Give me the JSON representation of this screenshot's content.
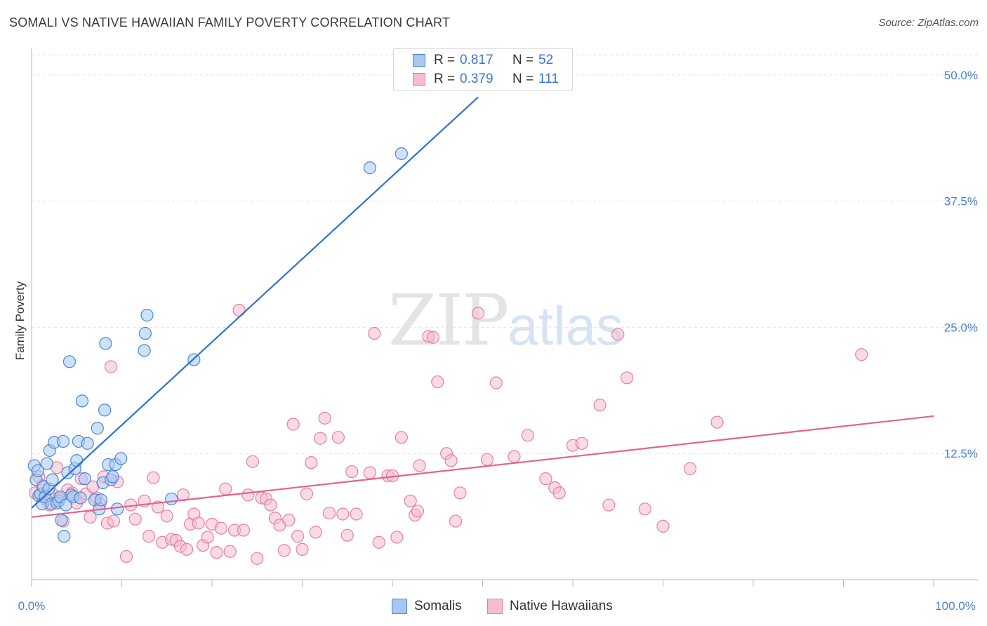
{
  "title": "SOMALI VS NATIVE HAWAIIAN FAMILY POVERTY CORRELATION CHART",
  "source": "Source: ZipAtlas.com",
  "watermark": {
    "zip": "ZIP",
    "atlas": "atlas"
  },
  "colors": {
    "somali_fill": "#a8c8f0",
    "somali_stroke": "#4a86d8",
    "somali_line": "#2f72d0",
    "hawaiian_fill": "#f6bcd0",
    "hawaiian_stroke": "#e77fa4",
    "hawaiian_line": "#e0648f",
    "accent_text": "#3b76d6"
  },
  "legend_top": {
    "rows": [
      {
        "r_label": "R =",
        "r_value": "0.817",
        "n_label": "N =",
        "n_value": "52"
      },
      {
        "r_label": "R =",
        "r_value": "0.379",
        "n_label": "N =",
        "n_value": "111"
      }
    ]
  },
  "legend_bottom": {
    "somali": "Somalis",
    "hawaiian": "Native Hawaiians"
  },
  "chart_data": {
    "type": "scatter",
    "title": "SOMALI VS NATIVE HAWAIIAN FAMILY POVERTY CORRELATION CHART",
    "xlabel": "",
    "ylabel": "Family Poverty",
    "xlim": [
      0,
      100
    ],
    "ylim": [
      0,
      52
    ],
    "x_tick_labels": [
      "0.0%",
      "100.0%"
    ],
    "y_ticks": [
      12.5,
      25.0,
      37.5,
      50.0
    ],
    "y_tick_labels": [
      "12.5%",
      "25.0%",
      "37.5%",
      "50.0%"
    ],
    "series": [
      {
        "name": "Somalis",
        "r": 0.817,
        "n": 52,
        "trend": {
          "x0": 0,
          "y0": 7.1,
          "x1": 49.5,
          "y1": 47.8
        },
        "points": [
          [
            0.3,
            11.3
          ],
          [
            0.5,
            9.9
          ],
          [
            0.7,
            10.8
          ],
          [
            0.8,
            8.3
          ],
          [
            1.0,
            8.5
          ],
          [
            1.2,
            7.5
          ],
          [
            1.3,
            9.2
          ],
          [
            1.5,
            8.2
          ],
          [
            1.7,
            11.5
          ],
          [
            1.9,
            9.0
          ],
          [
            2.0,
            12.8
          ],
          [
            2.2,
            7.5
          ],
          [
            2.3,
            9.9
          ],
          [
            2.5,
            13.6
          ],
          [
            2.8,
            7.6
          ],
          [
            3.0,
            7.8
          ],
          [
            3.2,
            8.2
          ],
          [
            3.3,
            5.9
          ],
          [
            3.5,
            13.7
          ],
          [
            3.6,
            4.3
          ],
          [
            3.8,
            7.4
          ],
          [
            4.0,
            10.6
          ],
          [
            4.2,
            21.6
          ],
          [
            4.4,
            8.4
          ],
          [
            4.6,
            8.2
          ],
          [
            4.8,
            11.0
          ],
          [
            5.0,
            11.8
          ],
          [
            5.2,
            13.7
          ],
          [
            5.4,
            8.1
          ],
          [
            5.6,
            17.7
          ],
          [
            5.9,
            10.0
          ],
          [
            6.2,
            13.5
          ],
          [
            7.0,
            7.9
          ],
          [
            7.3,
            15.0
          ],
          [
            7.5,
            7.0
          ],
          [
            7.7,
            7.9
          ],
          [
            7.9,
            9.6
          ],
          [
            8.1,
            16.8
          ],
          [
            8.2,
            23.4
          ],
          [
            8.5,
            11.4
          ],
          [
            8.8,
            9.9
          ],
          [
            9.0,
            10.2
          ],
          [
            9.3,
            11.4
          ],
          [
            9.5,
            7.0
          ],
          [
            9.9,
            12.0
          ],
          [
            12.5,
            22.7
          ],
          [
            12.6,
            24.4
          ],
          [
            12.8,
            26.2
          ],
          [
            15.5,
            8.0
          ],
          [
            18.0,
            21.8
          ],
          [
            37.5,
            40.8
          ],
          [
            41.0,
            42.2
          ]
        ]
      },
      {
        "name": "Native Hawaiians",
        "r": 0.379,
        "n": 111,
        "trend": {
          "x0": 0,
          "y0": 6.2,
          "x1": 100,
          "y1": 16.2
        },
        "points": [
          [
            0.4,
            8.6
          ],
          [
            0.8,
            10.2
          ],
          [
            1.2,
            9.3
          ],
          [
            1.6,
            7.9
          ],
          [
            2.0,
            7.4
          ],
          [
            2.3,
            8.5
          ],
          [
            2.8,
            11.1
          ],
          [
            3.0,
            8.1
          ],
          [
            3.5,
            5.8
          ],
          [
            4.0,
            8.9
          ],
          [
            4.5,
            8.6
          ],
          [
            5.0,
            7.6
          ],
          [
            5.5,
            10.0
          ],
          [
            6.0,
            8.5
          ],
          [
            6.5,
            6.2
          ],
          [
            6.8,
            9.2
          ],
          [
            7.2,
            8.1
          ],
          [
            7.6,
            7.5
          ],
          [
            8.0,
            10.2
          ],
          [
            8.4,
            5.6
          ],
          [
            8.8,
            21.1
          ],
          [
            9.1,
            5.8
          ],
          [
            9.5,
            9.7
          ],
          [
            10.5,
            2.3
          ],
          [
            11.0,
            7.4
          ],
          [
            11.5,
            6.0
          ],
          [
            12.5,
            7.8
          ],
          [
            13.0,
            4.3
          ],
          [
            13.5,
            10.1
          ],
          [
            14.0,
            7.2
          ],
          [
            14.5,
            3.7
          ],
          [
            15.0,
            6.3
          ],
          [
            15.5,
            4.0
          ],
          [
            16.0,
            3.9
          ],
          [
            16.5,
            3.3
          ],
          [
            16.8,
            8.4
          ],
          [
            17.2,
            3.0
          ],
          [
            17.6,
            5.5
          ],
          [
            18.0,
            6.5
          ],
          [
            18.5,
            5.6
          ],
          [
            19.0,
            3.4
          ],
          [
            19.5,
            4.2
          ],
          [
            20.0,
            5.5
          ],
          [
            20.5,
            2.7
          ],
          [
            21.0,
            5.1
          ],
          [
            21.5,
            9.0
          ],
          [
            22.0,
            2.8
          ],
          [
            22.5,
            4.9
          ],
          [
            23.0,
            26.7
          ],
          [
            23.5,
            4.9
          ],
          [
            24.0,
            8.4
          ],
          [
            24.5,
            11.7
          ],
          [
            25.0,
            2.1
          ],
          [
            25.5,
            8.1
          ],
          [
            26.0,
            8.0
          ],
          [
            26.5,
            7.4
          ],
          [
            27.0,
            6.1
          ],
          [
            27.5,
            5.4
          ],
          [
            28.0,
            2.9
          ],
          [
            28.5,
            5.9
          ],
          [
            29.0,
            15.4
          ],
          [
            29.5,
            4.3
          ],
          [
            30.0,
            3.0
          ],
          [
            30.5,
            8.5
          ],
          [
            31.0,
            11.6
          ],
          [
            31.5,
            4.7
          ],
          [
            32.0,
            14.0
          ],
          [
            32.5,
            16.0
          ],
          [
            33.0,
            6.6
          ],
          [
            34.0,
            14.1
          ],
          [
            34.5,
            6.5
          ],
          [
            35.0,
            4.4
          ],
          [
            35.5,
            10.7
          ],
          [
            36.0,
            6.5
          ],
          [
            37.5,
            10.6
          ],
          [
            38.0,
            24.4
          ],
          [
            38.5,
            3.7
          ],
          [
            39.5,
            10.3
          ],
          [
            40.0,
            10.3
          ],
          [
            40.5,
            4.2
          ],
          [
            41.0,
            14.1
          ],
          [
            42.0,
            7.8
          ],
          [
            42.5,
            6.4
          ],
          [
            42.8,
            6.8
          ],
          [
            43.0,
            11.3
          ],
          [
            44.0,
            24.1
          ],
          [
            44.5,
            24.0
          ],
          [
            45.0,
            19.6
          ],
          [
            46.0,
            12.5
          ],
          [
            46.5,
            11.8
          ],
          [
            47.0,
            5.8
          ],
          [
            47.5,
            8.6
          ],
          [
            49.5,
            26.4
          ],
          [
            50.5,
            11.9
          ],
          [
            51.5,
            19.5
          ],
          [
            53.5,
            12.2
          ],
          [
            55.0,
            14.3
          ],
          [
            57.0,
            10.0
          ],
          [
            58.0,
            9.1
          ],
          [
            58.5,
            8.6
          ],
          [
            60.0,
            13.3
          ],
          [
            61.0,
            13.5
          ],
          [
            63.0,
            17.3
          ],
          [
            64.0,
            7.4
          ],
          [
            65.0,
            24.3
          ],
          [
            66.0,
            20.0
          ],
          [
            68.0,
            7.0
          ],
          [
            70.0,
            5.3
          ],
          [
            73.0,
            11.0
          ],
          [
            76.0,
            15.6
          ],
          [
            92.0,
            22.3
          ]
        ]
      }
    ]
  }
}
